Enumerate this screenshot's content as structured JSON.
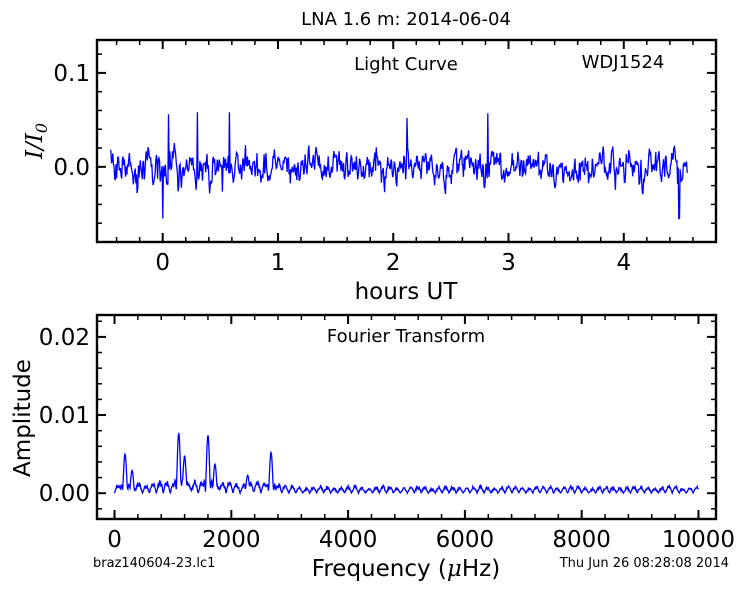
{
  "figure": {
    "title": "LNA 1.6 m:  2014-06-04",
    "footer_left": "braz140604-23.lc1",
    "footer_right": "Thu Jun 26 08:28:08 2014"
  },
  "colors": {
    "line": "#0000ff",
    "axes": "#000000",
    "background": "#ffffff"
  },
  "chart_data": [
    {
      "type": "line",
      "panel": "light-curve",
      "title": "",
      "annotations": [
        "Light Curve",
        "WDJ1524"
      ],
      "xlabel": "hours UT",
      "ylabel": "I/I0",
      "xlim": [
        -0.57,
        4.8
      ],
      "ylim": [
        -0.08,
        0.135
      ],
      "xticks": [
        0,
        1,
        2,
        3,
        4
      ],
      "xtick_labels": [
        "0",
        "1",
        "2",
        "3",
        "4"
      ],
      "yticks": [
        0.0,
        0.1
      ],
      "ytick_labels": [
        "0.0",
        "0.1"
      ],
      "grid": false,
      "series": [
        {
          "x_range": [
            -0.45,
            4.55
          ],
          "n_points": 900,
          "baseline": 0.0,
          "typical_scatter": 0.018,
          "peaks": [
            {
              "x": 0.05,
              "y": 0.056
            },
            {
              "x": 0.3,
              "y": 0.058
            },
            {
              "x": 0.58,
              "y": 0.058
            },
            {
              "x": 2.12,
              "y": 0.052
            },
            {
              "x": 2.82,
              "y": 0.057
            }
          ],
          "troughs": [
            {
              "x": 0.0,
              "y": -0.055
            },
            {
              "x": 4.48,
              "y": -0.055
            }
          ]
        }
      ]
    },
    {
      "type": "line",
      "panel": "fourier-transform",
      "title": "",
      "annotations": [
        "Fourier Transform"
      ],
      "xlabel": "Frequency (μHz)",
      "ylabel": "Amplitude",
      "xlim": [
        -300,
        10300
      ],
      "ylim": [
        -0.0033,
        0.0228
      ],
      "xticks": [
        0,
        2000,
        4000,
        6000,
        8000,
        10000
      ],
      "xtick_labels": [
        "0",
        "2000",
        "4000",
        "6000",
        "8000",
        "10000"
      ],
      "yticks": [
        0.0,
        0.01,
        0.02
      ],
      "ytick_labels": [
        "0.00",
        "0.01",
        "0.02"
      ],
      "grid": false,
      "series": [
        {
          "x_range": [
            0,
            10000
          ],
          "noise_floor": 0.0008,
          "peaks": [
            {
              "x": 180,
              "y": 0.005
            },
            {
              "x": 300,
              "y": 0.0029
            },
            {
              "x": 1100,
              "y": 0.0077
            },
            {
              "x": 1200,
              "y": 0.0048
            },
            {
              "x": 1600,
              "y": 0.0074
            },
            {
              "x": 1720,
              "y": 0.0037
            },
            {
              "x": 2280,
              "y": 0.0023
            },
            {
              "x": 2680,
              "y": 0.0052
            }
          ]
        }
      ]
    }
  ]
}
